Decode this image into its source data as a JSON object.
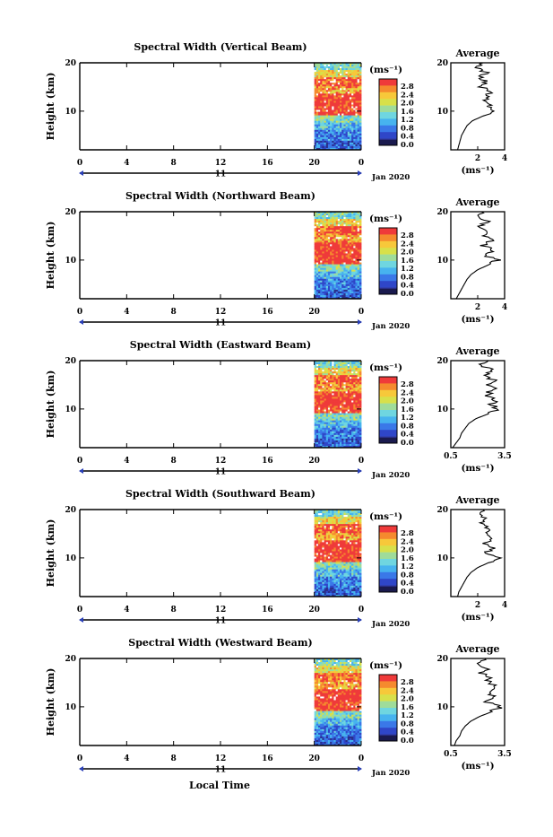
{
  "common": {
    "ylabel": "Height (km)",
    "x_ticks": [
      "0",
      "4",
      "8",
      "12",
      "16",
      "20",
      "0"
    ],
    "day_label": "11",
    "month_label": "Jan 2020",
    "xlabel": "Local Time",
    "unit_label": "(ms⁻¹)",
    "colorbar_labels": [
      "2.8",
      "2.4",
      "2.0",
      "1.6",
      "1.2",
      "0.8",
      "0.4",
      "0.0"
    ],
    "avg_title": "Average",
    "avg_xlabel": "(ms⁻¹)",
    "y_ticks": [
      "20",
      "10"
    ],
    "colors": {
      "palette": [
        "#2a2f8a",
        "#2f46c8",
        "#3a78e8",
        "#47b3ef",
        "#6fd6e0",
        "#9fdc9a",
        "#d8e04a",
        "#f7c83a",
        "#f58a2e",
        "#ef3a3a"
      ],
      "missing": "#ffffff",
      "axis": "#000000",
      "navy_bottom": "#1a1a4e"
    }
  },
  "chart_data": [
    {
      "type": "heatmap",
      "title": "Spectral Width (Vertical Beam)",
      "x_range_hours": [
        0,
        24
      ],
      "data_hours": [
        20,
        24
      ],
      "y_range_km": [
        2,
        20
      ],
      "color_range": [
        0,
        3
      ],
      "profile_km": [
        2,
        3,
        4,
        5,
        6,
        7,
        8,
        9,
        10,
        11,
        12,
        13,
        14,
        15,
        16,
        17,
        18,
        19,
        20
      ],
      "profile_values": [
        0.5,
        0.6,
        0.7,
        0.8,
        1.0,
        1.2,
        1.6,
        2.4,
        3.2,
        2.9,
        2.6,
        2.7,
        2.9,
        2.3,
        2.6,
        2.2,
        2.6,
        1.9,
        2.4
      ],
      "avg_x_range": [
        0,
        4
      ],
      "avg_x_ticks": [
        "2",
        "4"
      ],
      "avg_x_tick_values": [
        2,
        4
      ]
    },
    {
      "type": "heatmap",
      "title": "Spectral Width (Northward Beam)",
      "x_range_hours": [
        0,
        24
      ],
      "data_hours": [
        20,
        24
      ],
      "y_range_km": [
        2,
        20
      ],
      "color_range": [
        0,
        3
      ],
      "profile_km": [
        2,
        3,
        4,
        5,
        6,
        7,
        8,
        9,
        10,
        11,
        12,
        13,
        14,
        15,
        16,
        17,
        18,
        19,
        20
      ],
      "profile_values": [
        0.4,
        0.6,
        0.8,
        1.0,
        1.2,
        1.5,
        2.0,
        2.8,
        3.5,
        2.5,
        3.2,
        2.4,
        3.0,
        2.6,
        2.8,
        2.2,
        2.7,
        2.0,
        2.3
      ],
      "avg_x_range": [
        0,
        4
      ],
      "avg_x_ticks": [
        "2",
        "4"
      ],
      "avg_x_tick_values": [
        2,
        4
      ]
    },
    {
      "type": "heatmap",
      "title": "Spectral Width (Eastward Beam)",
      "x_range_hours": [
        0,
        24
      ],
      "data_hours": [
        20,
        24
      ],
      "y_range_km": [
        2,
        20
      ],
      "color_range": [
        0,
        3
      ],
      "profile_km": [
        2,
        3,
        4,
        5,
        6,
        7,
        8,
        9,
        10,
        11,
        12,
        13,
        14,
        15,
        16,
        17,
        18,
        19,
        20
      ],
      "profile_values": [
        0.6,
        0.8,
        1.0,
        1.1,
        1.3,
        1.5,
        1.9,
        2.6,
        3.2,
        2.7,
        3.0,
        2.5,
        2.9,
        2.7,
        2.9,
        2.4,
        2.8,
        2.2,
        2.6
      ],
      "avg_x_range": [
        0.5,
        3.5
      ],
      "avg_x_ticks": [
        "0.5",
        "3.5"
      ],
      "avg_x_tick_values": [
        0.5,
        3.5
      ]
    },
    {
      "type": "heatmap",
      "title": "Spectral Width (Southward Beam)",
      "x_range_hours": [
        0,
        24
      ],
      "data_hours": [
        20,
        24
      ],
      "y_range_km": [
        2,
        20
      ],
      "color_range": [
        0,
        3
      ],
      "profile_km": [
        2,
        3,
        4,
        5,
        6,
        7,
        8,
        9,
        10,
        11,
        12,
        13,
        14,
        15,
        16,
        17,
        18,
        19,
        20
      ],
      "profile_values": [
        0.5,
        0.6,
        0.8,
        1.0,
        1.2,
        1.5,
        2.0,
        2.8,
        3.5,
        2.6,
        3.1,
        2.5,
        3.2,
        2.7,
        2.9,
        2.3,
        2.6,
        2.0,
        2.4
      ],
      "avg_x_range": [
        0,
        4
      ],
      "avg_x_ticks": [
        "2",
        "4"
      ],
      "avg_x_tick_values": [
        2,
        4
      ]
    },
    {
      "type": "heatmap",
      "title": "Spectral Width (Westward Beam)",
      "x_range_hours": [
        0,
        24
      ],
      "data_hours": [
        20,
        24
      ],
      "y_range_km": [
        2,
        20
      ],
      "color_range": [
        0,
        3
      ],
      "profile_km": [
        2,
        3,
        4,
        5,
        6,
        7,
        8,
        9,
        10,
        11,
        12,
        13,
        14,
        15,
        16,
        17,
        18,
        19,
        20
      ],
      "profile_values": [
        0.7,
        0.8,
        1.0,
        1.1,
        1.3,
        1.6,
        2.1,
        2.8,
        3.3,
        2.6,
        3.0,
        2.5,
        3.0,
        2.6,
        2.7,
        2.2,
        2.6,
        2.0,
        2.4
      ],
      "avg_x_range": [
        0.5,
        3.5
      ],
      "avg_x_ticks": [
        "0.5",
        "3.5"
      ],
      "avg_x_tick_values": [
        0.5,
        3.5
      ]
    }
  ]
}
